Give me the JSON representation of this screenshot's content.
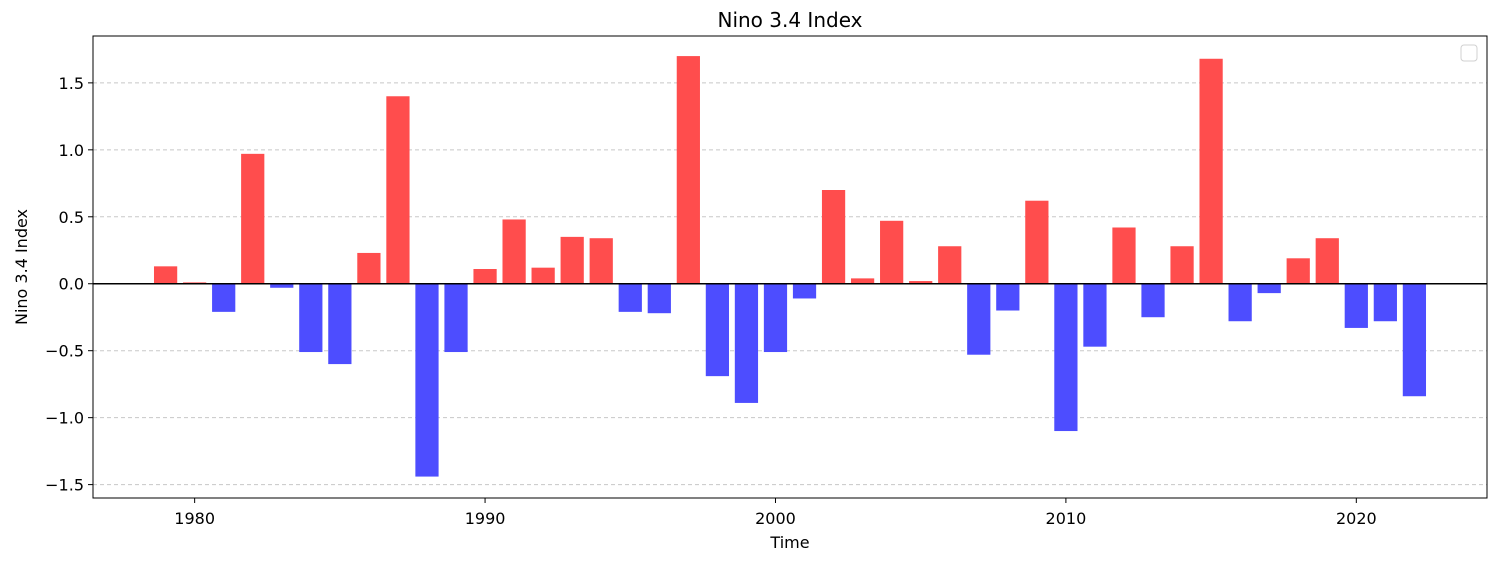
{
  "chart_data": {
    "type": "bar",
    "title": "Nino 3.4 Index",
    "xlabel": "Time",
    "ylabel": "Nino 3.4 Index",
    "xlim": [
      1976.5,
      2024.5
    ],
    "ylim": [
      -1.6,
      1.85
    ],
    "xticks": [
      1980,
      1990,
      2000,
      2010,
      2020
    ],
    "yticks": [
      -1.5,
      -1.0,
      -0.5,
      0.0,
      0.5,
      1.0,
      1.5
    ],
    "ytick_labels": [
      "−1.5",
      "−1.0",
      "−0.5",
      "0.0",
      "0.5",
      "1.0",
      "1.5"
    ],
    "grid": "horizontal dashed",
    "legend": "top-right (empty)",
    "zero_line": true,
    "colors": {
      "positive": "#ff4d4d",
      "negative": "#4d4dff",
      "grid": "#c8c8c8",
      "zero_line": "#000000"
    },
    "x": [
      1979,
      1980,
      1981,
      1982,
      1983,
      1984,
      1985,
      1986,
      1987,
      1988,
      1989,
      1990,
      1991,
      1992,
      1993,
      1994,
      1995,
      1996,
      1997,
      1998,
      1999,
      2000,
      2001,
      2002,
      2003,
      2004,
      2005,
      2006,
      2007,
      2008,
      2009,
      2010,
      2011,
      2012,
      2013,
      2014,
      2015,
      2016,
      2017,
      2018,
      2019,
      2020,
      2021,
      2022
    ],
    "values": [
      0.13,
      0.01,
      -0.21,
      0.97,
      -0.03,
      -0.51,
      -0.6,
      0.23,
      1.4,
      -1.44,
      -0.51,
      0.11,
      0.48,
      0.12,
      0.35,
      0.34,
      -0.21,
      -0.22,
      1.7,
      -0.69,
      -0.89,
      -0.51,
      -0.11,
      0.7,
      0.04,
      0.47,
      0.02,
      0.28,
      -0.53,
      -0.2,
      0.62,
      -1.1,
      -0.47,
      0.42,
      -0.25,
      0.28,
      1.68,
      -0.28,
      -0.07,
      0.19,
      0.34,
      -0.33,
      -0.28,
      -0.84
    ]
  }
}
